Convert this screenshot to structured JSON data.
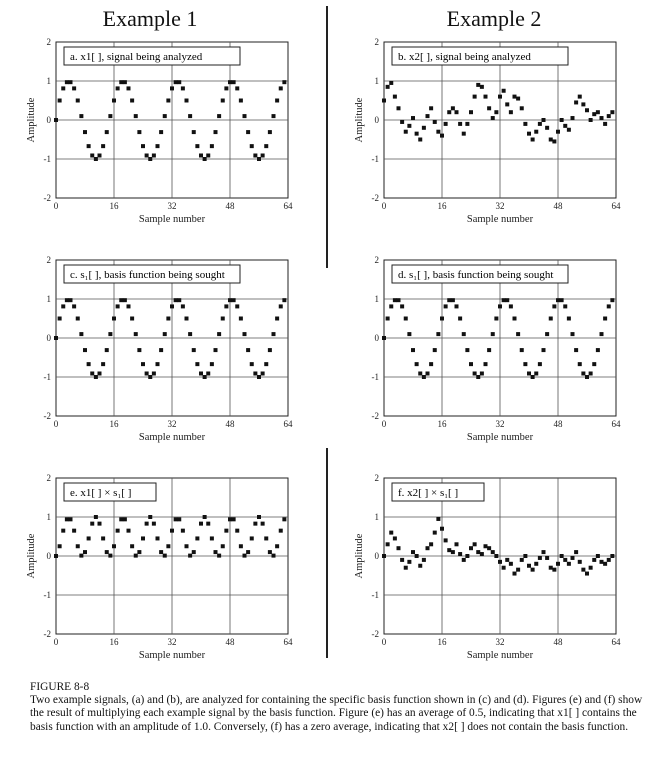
{
  "headings": {
    "left": "Example 1",
    "right": "Example 2"
  },
  "caption": {
    "figure": "FIGURE 8-8",
    "text": "Two example signals, (a) and (b), are analyzed for containing the specific basis function shown in (c) and (d). Figures (e) and (f) show the result of multiplying each example signal by the basis function. Figure (e) has an average of 0.5, indicating that x1[ ] contains the basis function with an amplitude of 1.0. Conversely, (f) has a zero average, indicating that x2[ ] does not contain the basis function."
  },
  "chart_data": [
    {
      "id": "a",
      "type": "scatter",
      "label": "a.  x1[ ], signal being analyzed",
      "xlabel": "Sample number",
      "ylabel": "Amplitude",
      "xlim": [
        0,
        64
      ],
      "ylim": [
        -2,
        2
      ],
      "xticks": [
        0,
        16,
        32,
        48,
        64
      ],
      "yticks": [
        2,
        1,
        0,
        -1,
        -2
      ],
      "grid": true,
      "x": [
        0,
        1,
        2,
        3,
        4,
        5,
        6,
        7,
        8,
        9,
        10,
        11,
        12,
        13,
        14,
        15,
        16,
        17,
        18,
        19,
        20,
        21,
        22,
        23,
        24,
        25,
        26,
        27,
        28,
        29,
        30,
        31,
        32,
        33,
        34,
        35,
        36,
        37,
        38,
        39,
        40,
        41,
        42,
        43,
        44,
        45,
        46,
        47,
        48,
        49,
        50,
        51,
        52,
        53,
        54,
        55,
        56,
        57,
        58,
        59,
        60,
        61,
        62,
        63
      ],
      "y": [
        0,
        0.5,
        0.81,
        0.97,
        0.97,
        0.81,
        0.5,
        0.1,
        -0.31,
        -0.67,
        -0.91,
        -1,
        -0.91,
        -0.67,
        -0.31,
        0.1,
        0.5,
        0.81,
        0.97,
        0.97,
        0.81,
        0.5,
        0.1,
        -0.31,
        -0.67,
        -0.91,
        -1,
        -0.91,
        -0.67,
        -0.31,
        0.1,
        0.5,
        0.81,
        0.97,
        0.97,
        0.81,
        0.5,
        0.1,
        -0.31,
        -0.67,
        -0.91,
        -1,
        -0.91,
        -0.67,
        -0.31,
        0.1,
        0.5,
        0.81,
        0.97,
        0.97,
        0.81,
        0.5,
        0.1,
        -0.31,
        -0.67,
        -0.91,
        -1,
        -0.91,
        -0.67,
        -0.31,
        0.1,
        0.5,
        0.81,
        0.97
      ]
    },
    {
      "id": "b",
      "type": "scatter",
      "label": "b.  x2[ ], signal being analyzed",
      "xlabel": "Sample number",
      "ylabel": "Amplitude",
      "xlim": [
        0,
        64
      ],
      "ylim": [
        -2,
        2
      ],
      "xticks": [
        0,
        16,
        32,
        48,
        64
      ],
      "yticks": [
        2,
        1,
        0,
        -1,
        -2
      ],
      "grid": true,
      "x": [
        0,
        1,
        2,
        3,
        4,
        5,
        6,
        7,
        8,
        9,
        10,
        11,
        12,
        13,
        14,
        15,
        16,
        17,
        18,
        19,
        20,
        21,
        22,
        23,
        24,
        25,
        26,
        27,
        28,
        29,
        30,
        31,
        32,
        33,
        34,
        35,
        36,
        37,
        38,
        39,
        40,
        41,
        42,
        43,
        44,
        45,
        46,
        47,
        48,
        49,
        50,
        51,
        52,
        53,
        54,
        55,
        56,
        57,
        58,
        59,
        60,
        61,
        62,
        63
      ],
      "y": [
        0.5,
        0.85,
        0.95,
        0.6,
        0.3,
        -0.05,
        -0.3,
        -0.15,
        0.05,
        -0.35,
        -0.5,
        -0.2,
        0.1,
        0.3,
        -0.05,
        -0.3,
        -0.4,
        -0.1,
        0.2,
        0.3,
        0.2,
        -0.1,
        -0.35,
        -0.1,
        0.2,
        0.6,
        0.9,
        0.85,
        0.6,
        0.3,
        0.05,
        0.2,
        0.6,
        0.75,
        0.4,
        0.2,
        0.6,
        0.55,
        0.3,
        -0.1,
        -0.35,
        -0.5,
        -0.3,
        -0.1,
        0.0,
        -0.2,
        -0.5,
        -0.55,
        -0.3,
        0.0,
        -0.15,
        -0.25,
        0.05,
        0.45,
        0.6,
        0.4,
        0.25,
        0.0,
        0.15,
        0.2,
        0.05,
        -0.1,
        0.1,
        0.2
      ]
    },
    {
      "id": "c",
      "type": "scatter",
      "label": "c.  s₁[ ], basis function being sought",
      "xlabel": "Sample number",
      "ylabel": "",
      "xlim": [
        0,
        64
      ],
      "ylim": [
        -2,
        2
      ],
      "xticks": [
        0,
        16,
        32,
        48,
        64
      ],
      "yticks": [
        2,
        1,
        0,
        -1,
        -2
      ],
      "grid": true,
      "x": [
        0,
        1,
        2,
        3,
        4,
        5,
        6,
        7,
        8,
        9,
        10,
        11,
        12,
        13,
        14,
        15,
        16,
        17,
        18,
        19,
        20,
        21,
        22,
        23,
        24,
        25,
        26,
        27,
        28,
        29,
        30,
        31,
        32,
        33,
        34,
        35,
        36,
        37,
        38,
        39,
        40,
        41,
        42,
        43,
        44,
        45,
        46,
        47,
        48,
        49,
        50,
        51,
        52,
        53,
        54,
        55,
        56,
        57,
        58,
        59,
        60,
        61,
        62,
        63
      ],
      "y": [
        0,
        0.5,
        0.81,
        0.97,
        0.97,
        0.81,
        0.5,
        0.1,
        -0.31,
        -0.67,
        -0.91,
        -1,
        -0.91,
        -0.67,
        -0.31,
        0.1,
        0.5,
        0.81,
        0.97,
        0.97,
        0.81,
        0.5,
        0.1,
        -0.31,
        -0.67,
        -0.91,
        -1,
        -0.91,
        -0.67,
        -0.31,
        0.1,
        0.5,
        0.81,
        0.97,
        0.97,
        0.81,
        0.5,
        0.1,
        -0.31,
        -0.67,
        -0.91,
        -1,
        -0.91,
        -0.67,
        -0.31,
        0.1,
        0.5,
        0.81,
        0.97,
        0.97,
        0.81,
        0.5,
        0.1,
        -0.31,
        -0.67,
        -0.91,
        -1,
        -0.91,
        -0.67,
        -0.31,
        0.1,
        0.5,
        0.81,
        0.97
      ]
    },
    {
      "id": "d",
      "type": "scatter",
      "label": "d.  s₁[ ], basis function being sought",
      "xlabel": "Sample number",
      "ylabel": "",
      "xlim": [
        0,
        64
      ],
      "ylim": [
        -2,
        2
      ],
      "xticks": [
        0,
        16,
        32,
        48,
        64
      ],
      "yticks": [
        2,
        1,
        0,
        -1,
        -2
      ],
      "grid": true,
      "x": [
        0,
        1,
        2,
        3,
        4,
        5,
        6,
        7,
        8,
        9,
        10,
        11,
        12,
        13,
        14,
        15,
        16,
        17,
        18,
        19,
        20,
        21,
        22,
        23,
        24,
        25,
        26,
        27,
        28,
        29,
        30,
        31,
        32,
        33,
        34,
        35,
        36,
        37,
        38,
        39,
        40,
        41,
        42,
        43,
        44,
        45,
        46,
        47,
        48,
        49,
        50,
        51,
        52,
        53,
        54,
        55,
        56,
        57,
        58,
        59,
        60,
        61,
        62,
        63
      ],
      "y": [
        0,
        0.5,
        0.81,
        0.97,
        0.97,
        0.81,
        0.5,
        0.1,
        -0.31,
        -0.67,
        -0.91,
        -1,
        -0.91,
        -0.67,
        -0.31,
        0.1,
        0.5,
        0.81,
        0.97,
        0.97,
        0.81,
        0.5,
        0.1,
        -0.31,
        -0.67,
        -0.91,
        -1,
        -0.91,
        -0.67,
        -0.31,
        0.1,
        0.5,
        0.81,
        0.97,
        0.97,
        0.81,
        0.5,
        0.1,
        -0.31,
        -0.67,
        -0.91,
        -1,
        -0.91,
        -0.67,
        -0.31,
        0.1,
        0.5,
        0.81,
        0.97,
        0.97,
        0.81,
        0.5,
        0.1,
        -0.31,
        -0.67,
        -0.91,
        -1,
        -0.91,
        -0.67,
        -0.31,
        0.1,
        0.5,
        0.81,
        0.97
      ]
    },
    {
      "id": "e",
      "type": "scatter",
      "label": "e.  x1[ ] × s₁[ ]",
      "xlabel": "Sample number",
      "ylabel": "Amplitude",
      "xlim": [
        0,
        64
      ],
      "ylim": [
        -2,
        2
      ],
      "xticks": [
        0,
        16,
        32,
        48,
        64
      ],
      "yticks": [
        2,
        1,
        0,
        -1,
        -2
      ],
      "grid": true,
      "x": [
        0,
        1,
        2,
        3,
        4,
        5,
        6,
        7,
        8,
        9,
        10,
        11,
        12,
        13,
        14,
        15,
        16,
        17,
        18,
        19,
        20,
        21,
        22,
        23,
        24,
        25,
        26,
        27,
        28,
        29,
        30,
        31,
        32,
        33,
        34,
        35,
        36,
        37,
        38,
        39,
        40,
        41,
        42,
        43,
        44,
        45,
        46,
        47,
        48,
        49,
        50,
        51,
        52,
        53,
        54,
        55,
        56,
        57,
        58,
        59,
        60,
        61,
        62,
        63
      ],
      "y": [
        0,
        0.25,
        0.65,
        0.94,
        0.94,
        0.65,
        0.25,
        0.01,
        0.1,
        0.45,
        0.83,
        1,
        0.83,
        0.45,
        0.1,
        0.01,
        0.25,
        0.65,
        0.94,
        0.94,
        0.65,
        0.25,
        0.01,
        0.1,
        0.45,
        0.83,
        1,
        0.83,
        0.45,
        0.1,
        0.01,
        0.25,
        0.65,
        0.94,
        0.94,
        0.65,
        0.25,
        0.01,
        0.1,
        0.45,
        0.83,
        1,
        0.83,
        0.45,
        0.1,
        0.01,
        0.25,
        0.65,
        0.94,
        0.94,
        0.65,
        0.25,
        0.01,
        0.1,
        0.45,
        0.83,
        1,
        0.83,
        0.45,
        0.1,
        0.01,
        0.25,
        0.65,
        0.94
      ]
    },
    {
      "id": "f",
      "type": "scatter",
      "label": "f.  x2[ ] × s₁[ ]",
      "xlabel": "Sample number",
      "ylabel": "Amplitude",
      "xlim": [
        0,
        64
      ],
      "ylim": [
        -2,
        2
      ],
      "xticks": [
        0,
        16,
        32,
        48,
        64
      ],
      "yticks": [
        2,
        1,
        0,
        -1,
        -2
      ],
      "grid": true,
      "x": [
        0,
        1,
        2,
        3,
        4,
        5,
        6,
        7,
        8,
        9,
        10,
        11,
        12,
        13,
        14,
        15,
        16,
        17,
        18,
        19,
        20,
        21,
        22,
        23,
        24,
        25,
        26,
        27,
        28,
        29,
        30,
        31,
        32,
        33,
        34,
        35,
        36,
        37,
        38,
        39,
        40,
        41,
        42,
        43,
        44,
        45,
        46,
        47,
        48,
        49,
        50,
        51,
        52,
        53,
        54,
        55,
        56,
        57,
        58,
        59,
        60,
        61,
        62,
        63
      ],
      "y": [
        0,
        0.3,
        0.6,
        0.45,
        0.2,
        -0.1,
        -0.3,
        -0.15,
        0.1,
        0.0,
        -0.25,
        -0.1,
        0.2,
        0.3,
        0.6,
        0.95,
        0.7,
        0.4,
        0.15,
        0.1,
        0.3,
        0.05,
        -0.1,
        0.0,
        0.2,
        0.3,
        0.1,
        0.05,
        0.25,
        0.2,
        0.1,
        0.0,
        -0.15,
        -0.3,
        -0.1,
        -0.2,
        -0.45,
        -0.35,
        -0.1,
        0.0,
        -0.25,
        -0.35,
        -0.2,
        -0.05,
        0.1,
        -0.05,
        -0.3,
        -0.35,
        -0.2,
        0.0,
        -0.1,
        -0.2,
        -0.05,
        0.1,
        -0.15,
        -0.35,
        -0.45,
        -0.3,
        -0.1,
        0.0,
        -0.15,
        -0.2,
        -0.1,
        0.0
      ]
    }
  ]
}
